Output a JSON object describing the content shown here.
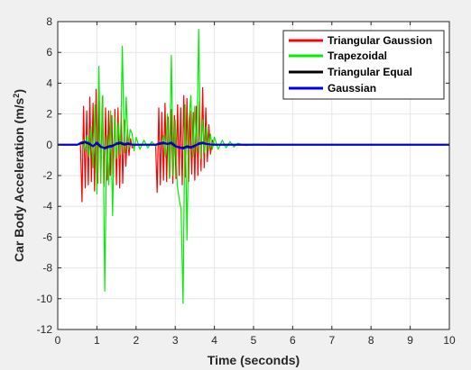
{
  "chart_data": {
    "type": "line",
    "title": "",
    "xlabel": "Time (seconds)",
    "ylabel_main": "Car Body Acceleration (m/s",
    "ylabel_sup": "2",
    "ylabel_tail": ")",
    "xlim": [
      0,
      10
    ],
    "ylim": [
      -12,
      8
    ],
    "xticks": [
      "0",
      "1",
      "2",
      "3",
      "4",
      "5",
      "6",
      "7",
      "8",
      "9",
      "10"
    ],
    "yticks": [
      "-12",
      "-10",
      "-8",
      "-6",
      "-4",
      "-2",
      "0",
      "2",
      "4",
      "6",
      "8"
    ],
    "grid": true,
    "legend_position": "top-right",
    "series": [
      {
        "name": "Triangular Gaussion",
        "color": "#ff0000",
        "x": [
          0.58,
          0.62,
          0.66,
          0.7,
          0.74,
          0.78,
          0.82,
          0.86,
          0.9,
          0.94,
          0.98,
          1.02,
          1.06,
          1.1,
          1.14,
          1.18,
          1.22,
          1.26,
          1.3,
          1.34,
          1.38,
          1.42,
          1.46,
          1.5,
          1.54,
          1.58,
          1.62,
          1.66,
          1.7,
          1.74,
          1.78,
          1.82,
          1.86,
          1.9,
          2.0,
          2.2,
          2.4,
          2.5,
          2.54,
          2.58,
          2.62,
          2.66,
          2.7,
          2.74,
          2.78,
          2.82,
          2.86,
          2.9,
          2.94,
          2.98,
          3.02,
          3.06,
          3.1,
          3.14,
          3.18,
          3.22,
          3.26,
          3.3,
          3.34,
          3.38,
          3.42,
          3.46,
          3.5,
          3.54,
          3.58,
          3.62,
          3.66,
          3.7,
          3.74,
          3.78,
          3.82,
          3.86,
          3.9,
          3.95,
          4.0,
          4.1,
          4.3,
          5.0,
          10.0
        ],
        "y": [
          0,
          -3.7,
          2.5,
          -2.8,
          2.2,
          -2.6,
          3.1,
          -2.4,
          2.7,
          -3.0,
          3.6,
          -2.5,
          2.9,
          -2.2,
          3.1,
          -2.7,
          2.4,
          -2.3,
          2.2,
          -2.0,
          1.9,
          -2.1,
          2.3,
          -2.6,
          2.4,
          -2.8,
          2.2,
          -2.5,
          1.6,
          -1.4,
          1.0,
          -0.7,
          0.4,
          -0.2,
          0,
          0,
          0,
          0,
          -3.1,
          2.4,
          -2.6,
          2.1,
          -2.3,
          2.7,
          -2.4,
          1.8,
          -2.1,
          2.3,
          -2.5,
          1.9,
          -2.2,
          2.6,
          -2.0,
          2.4,
          -2.6,
          3.2,
          -2.1,
          3.0,
          -2.4,
          2.2,
          -1.9,
          2.1,
          -2.3,
          2.5,
          -2.0,
          2.8,
          -1.7,
          3.7,
          -1.5,
          2.4,
          -1.1,
          1.3,
          -0.6,
          0.3,
          0,
          0,
          0,
          0,
          0
        ]
      },
      {
        "name": "Trapezoidal",
        "color": "#00ee00",
        "x": [
          0.6,
          0.65,
          0.7,
          0.75,
          0.8,
          0.85,
          0.9,
          0.95,
          1.0,
          1.05,
          1.1,
          1.15,
          1.2,
          1.25,
          1.3,
          1.35,
          1.4,
          1.45,
          1.5,
          1.55,
          1.6,
          1.65,
          1.7,
          1.75,
          1.8,
          1.85,
          1.9,
          1.95,
          2.0,
          2.1,
          2.2,
          2.3,
          2.4,
          2.5,
          2.6,
          2.65,
          2.7,
          2.75,
          2.8,
          2.85,
          2.9,
          2.95,
          3.0,
          3.05,
          3.1,
          3.15,
          3.2,
          3.25,
          3.3,
          3.35,
          3.4,
          3.45,
          3.5,
          3.55,
          3.6,
          3.65,
          3.7,
          3.75,
          3.8,
          3.85,
          3.9,
          3.95,
          4.0,
          4.1,
          4.2,
          4.3,
          4.4,
          4.5,
          4.6,
          4.8,
          5.0,
          5.4,
          5.8,
          6.0,
          10.0
        ],
        "y": [
          0,
          0.3,
          -0.4,
          0.6,
          -0.8,
          1.2,
          -1.5,
          2.6,
          -3.2,
          5.1,
          -2.5,
          3.2,
          -9.5,
          0.6,
          -2.6,
          2.2,
          -4.6,
          1.8,
          -0.9,
          1.4,
          -0.6,
          6.4,
          -0.5,
          3.1,
          -0.3,
          1.0,
          0.7,
          -0.4,
          0.5,
          -0.3,
          0.3,
          -0.2,
          0.2,
          -0.1,
          0.1,
          0,
          0.6,
          -0.8,
          2.0,
          -2.2,
          5.8,
          -2.0,
          1.6,
          -2.6,
          -3.5,
          -4.2,
          -10.3,
          2.6,
          -6.2,
          1.5,
          3.2,
          -0.8,
          2.5,
          -0.5,
          7.5,
          -0.9,
          1.6,
          -0.5,
          1.2,
          -0.4,
          0.7,
          -0.3,
          0.5,
          -0.3,
          0.3,
          -0.2,
          0.2,
          -0.15,
          0.1,
          -0.05,
          0.04,
          -0.02,
          0.01,
          0,
          0
        ]
      },
      {
        "name": "Triangular Equal",
        "color": "#000000",
        "x": [
          0,
          0.5,
          0.6,
          0.7,
          0.8,
          0.9,
          1.0,
          1.1,
          1.2,
          1.3,
          1.4,
          1.5,
          1.6,
          1.7,
          1.8,
          1.9,
          2.0,
          2.5,
          2.6,
          2.7,
          2.8,
          2.9,
          3.0,
          3.1,
          3.2,
          3.3,
          3.4,
          3.5,
          3.6,
          3.7,
          3.8,
          3.9,
          4.0,
          10.0
        ],
        "y": [
          0,
          0,
          0.1,
          0.15,
          0.05,
          -0.1,
          0.1,
          -0.15,
          -0.2,
          -0.1,
          -0.05,
          0.05,
          0.1,
          0.0,
          0.05,
          0.0,
          0,
          0,
          0.05,
          0.1,
          0.05,
          0.1,
          -0.1,
          -0.15,
          -0.2,
          -0.1,
          -0.15,
          -0.05,
          0.05,
          0.1,
          0.05,
          0.02,
          0,
          0
        ]
      },
      {
        "name": "Gaussian",
        "color": "#0000ee",
        "x": [
          0,
          0.5,
          0.6,
          0.7,
          0.8,
          0.9,
          1.0,
          1.1,
          1.2,
          1.3,
          1.4,
          1.5,
          1.6,
          1.7,
          1.8,
          1.9,
          2.0,
          2.5,
          2.6,
          2.7,
          2.8,
          2.9,
          3.0,
          3.1,
          3.2,
          3.3,
          3.4,
          3.5,
          3.6,
          3.7,
          3.8,
          3.9,
          4.0,
          10.0
        ],
        "y": [
          0,
          0,
          0.15,
          0.2,
          0.1,
          -0.1,
          0.15,
          -0.1,
          -0.25,
          -0.15,
          -0.1,
          0.1,
          0.15,
          0.05,
          0.1,
          0.0,
          0,
          0,
          0.1,
          0.15,
          0.05,
          0.15,
          -0.05,
          -0.2,
          -0.25,
          -0.15,
          -0.2,
          -0.1,
          0.1,
          0.15,
          0.05,
          0.02,
          0,
          0
        ]
      }
    ]
  }
}
